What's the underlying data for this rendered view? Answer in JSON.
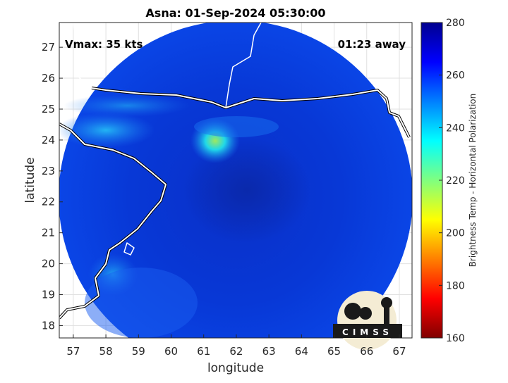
{
  "chart_data": {
    "type": "map",
    "title": "Asna: 01-Sep-2024 05:30:00",
    "annotations": [
      "Vmax: 35 kts",
      "01:23 away"
    ],
    "xlabel": "longitude",
    "ylabel": "latitude",
    "xlim": [
      56.57,
      67.39
    ],
    "xticks": [
      57,
      58,
      59,
      60,
      61,
      62,
      63,
      64,
      65,
      66,
      67
    ],
    "ylim": [
      17.6,
      27.8
    ],
    "yticks": [
      18,
      19,
      20,
      21,
      22,
      23,
      24,
      25,
      26,
      27
    ],
    "grid": true,
    "colorbar": {
      "label": "Brightness Temp - Horizontal Polarization",
      "clim": [
        160,
        280
      ],
      "ticks": [
        160,
        180,
        200,
        220,
        240,
        260,
        280
      ]
    },
    "logo": "CIMSS"
  }
}
